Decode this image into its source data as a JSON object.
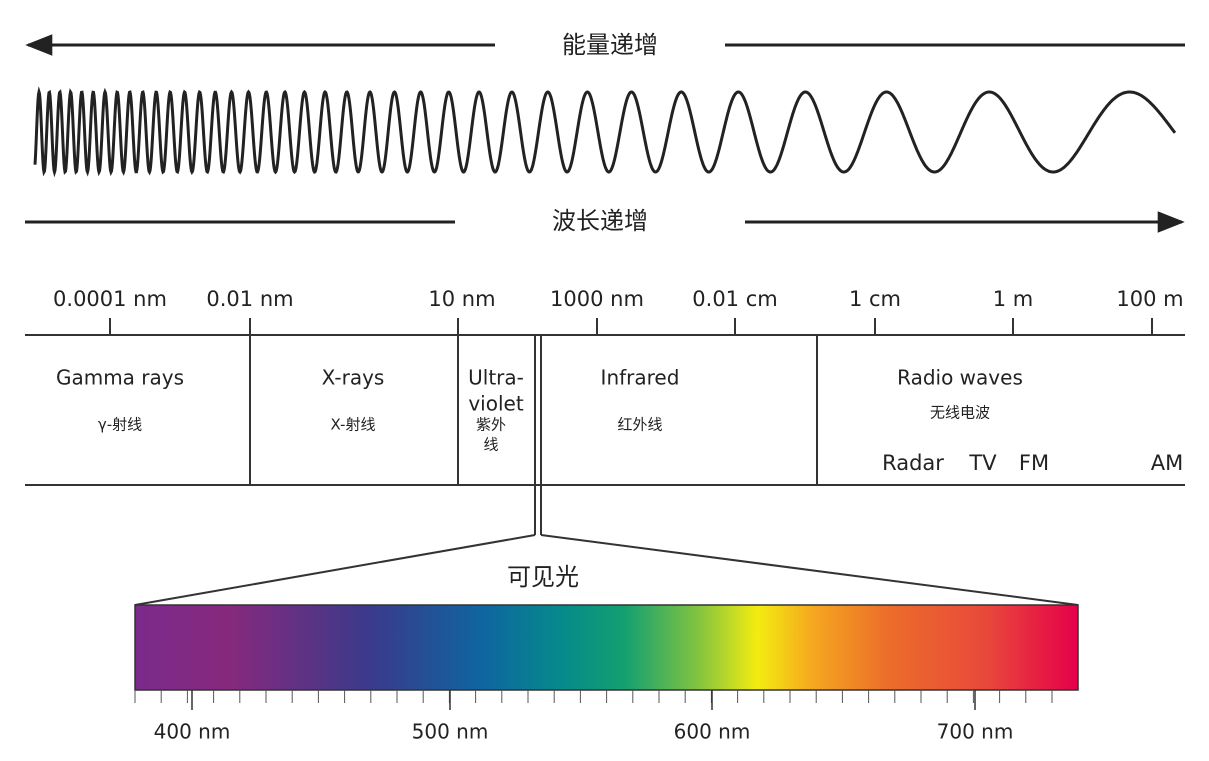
{
  "energy_label": "能量递增",
  "wavelength_label": "波长递增",
  "scale_ticks": [
    "0.0001 nm",
    "0.01 nm",
    "10 nm",
    "1000 nm",
    "0.01 cm",
    "1 cm",
    "1 m",
    "100 m"
  ],
  "bands": [
    {
      "name": [
        "Gamma rays"
      ],
      "chinese": [
        "γ-射线"
      ]
    },
    {
      "name": [
        "X-rays"
      ],
      "chinese": [
        "X-射线"
      ]
    },
    {
      "name": [
        "Ultra-",
        "violet"
      ],
      "chinese": [
        "紫外",
        "线"
      ]
    },
    {
      "name": [
        "Infrared"
      ],
      "chinese": [
        "红外线"
      ]
    },
    {
      "name": [
        "Radio waves"
      ],
      "chinese": [
        "无线电波"
      ]
    }
  ],
  "radio_sub": [
    "Radar",
    "TV",
    "FM",
    "AM"
  ],
  "visible_label": "可见光",
  "visible_ticks": [
    "400 nm",
    "500 nm",
    "600 nm",
    "700 nm"
  ]
}
